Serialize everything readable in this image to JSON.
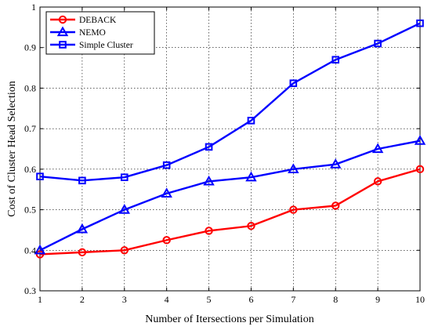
{
  "chart_data": {
    "type": "line",
    "title": "",
    "xlabel": "Number of Itersections per Simulation",
    "ylabel": "Cost of Cluster Head Selection",
    "x": [
      1,
      2,
      3,
      4,
      5,
      6,
      7,
      8,
      9,
      10
    ],
    "xlim": [
      1,
      10
    ],
    "ylim": [
      0.3,
      1.0
    ],
    "xticks": [
      "1",
      "2",
      "3",
      "4",
      "5",
      "6",
      "7",
      "8",
      "9",
      "10"
    ],
    "yticks": [
      "0.3",
      "0.4",
      "0.5",
      "0.6",
      "0.7",
      "0.8",
      "0.9",
      "1"
    ],
    "grid": "dotted",
    "legend_position": "top-left",
    "series": [
      {
        "name": "DEBACK",
        "color": "#ff0000",
        "marker": "circle",
        "values": [
          0.39,
          0.395,
          0.4,
          0.425,
          0.448,
          0.46,
          0.5,
          0.51,
          0.57,
          0.6
        ]
      },
      {
        "name": "NEMO",
        "color": "#0000ff",
        "marker": "triangle",
        "values": [
          0.4,
          0.452,
          0.5,
          0.54,
          0.57,
          0.58,
          0.6,
          0.612,
          0.65,
          0.67
        ]
      },
      {
        "name": "Simple Cluster",
        "color": "#0000ff",
        "marker": "square",
        "values": [
          0.582,
          0.572,
          0.58,
          0.61,
          0.655,
          0.72,
          0.812,
          0.87,
          0.91,
          0.96
        ]
      }
    ]
  }
}
